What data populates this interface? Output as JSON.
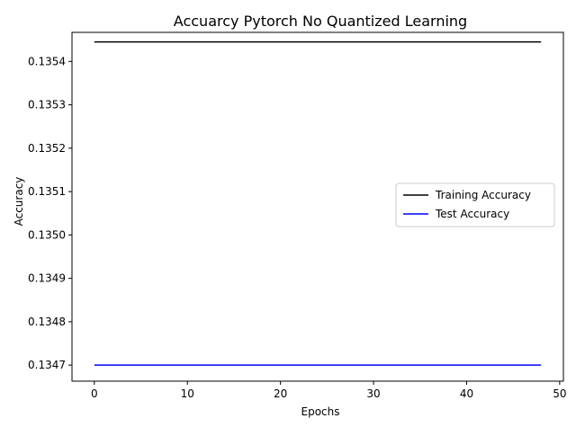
{
  "chart_data": {
    "type": "line",
    "title": "Accuarcy Pytorch No Quantized Learning",
    "xlabel": "Epochs",
    "ylabel": "Accuracy",
    "xlim": [
      -2.4,
      50.4
    ],
    "ylim": [
      0.134663,
      0.135467
    ],
    "x_ticks": [
      0,
      10,
      20,
      30,
      40,
      50
    ],
    "x_tick_labels": [
      "0",
      "10",
      "20",
      "30",
      "40",
      "50"
    ],
    "y_ticks": [
      0.1347,
      0.1348,
      0.1349,
      0.135,
      0.1351,
      0.1352,
      0.1353,
      0.1354
    ],
    "y_tick_labels": [
      "0.1347",
      "0.1348",
      "0.1349",
      "0.1350",
      "0.1351",
      "0.1352",
      "0.1353",
      "0.1354"
    ],
    "grid": false,
    "legend_position": "center-right",
    "series": [
      {
        "name": "Training Accuracy",
        "color": "#000000",
        "x": [
          0,
          48
        ],
        "y": [
          0.135445,
          0.135445
        ]
      },
      {
        "name": "Test Accuracy",
        "color": "#0000ff",
        "x": [
          0,
          48
        ],
        "y": [
          0.1347,
          0.1347
        ]
      }
    ]
  }
}
